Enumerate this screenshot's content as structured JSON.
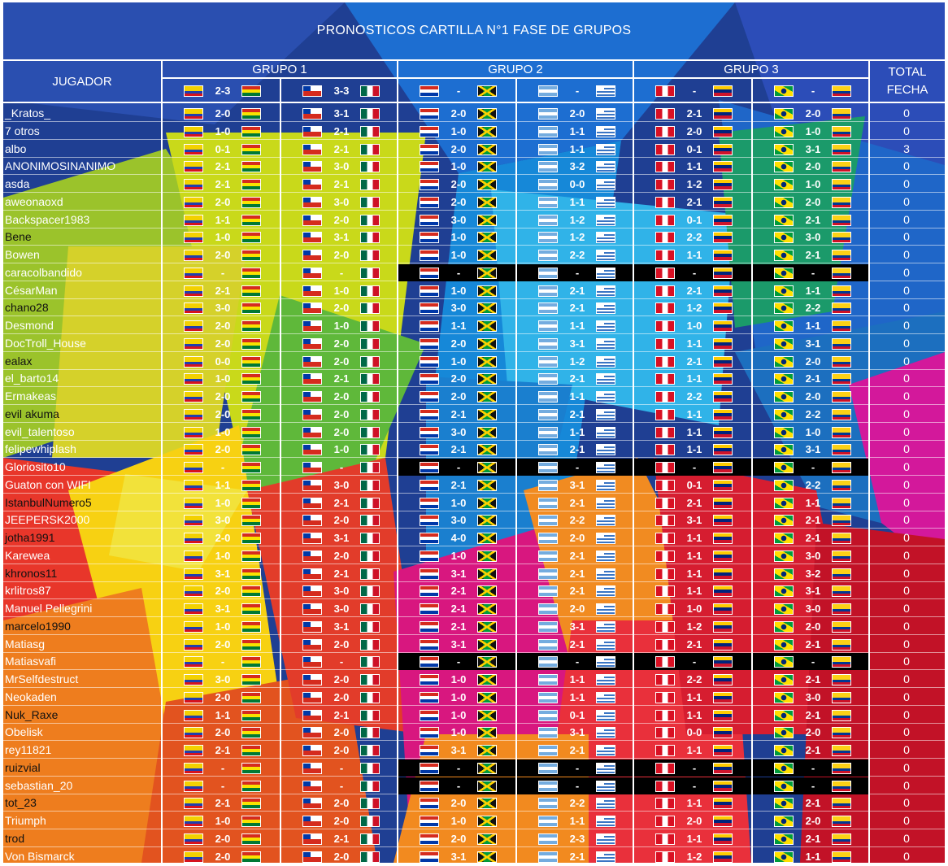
{
  "title": "PRONOSTICOS CARTILLA N°1 FASE DE GRUPOS",
  "header": {
    "player_label": "JUGADOR",
    "total_label": "TOTAL FECHA",
    "groups": [
      "GRUPO 1",
      "GRUPO 2",
      "GRUPO 3"
    ]
  },
  "matches": [
    {
      "home": "ecu",
      "away": "bol",
      "result": "2-3"
    },
    {
      "home": "chi",
      "away": "mex",
      "result": "3-3"
    },
    {
      "home": "par",
      "away": "jam",
      "result": "-"
    },
    {
      "home": "arg",
      "away": "uru",
      "result": "-"
    },
    {
      "home": "per",
      "away": "ven",
      "result": "-"
    },
    {
      "home": "bra",
      "away": "col",
      "result": "-"
    }
  ],
  "rows": [
    {
      "name": "_Kratos_",
      "picks": [
        "2-0",
        "3-1",
        "2-0",
        "2-0",
        "2-1",
        "2-0"
      ],
      "total": "0"
    },
    {
      "name": "7 otros",
      "picks": [
        "1-0",
        "2-1",
        "1-0",
        "1-1",
        "2-0",
        "1-0"
      ],
      "total": "0"
    },
    {
      "name": "albo",
      "picks": [
        "0-1",
        "2-1",
        "2-0",
        "1-1",
        "0-1",
        "3-1"
      ],
      "total": "3"
    },
    {
      "name": "ANONIMOSINANIMO",
      "picks": [
        "2-1",
        "3-0",
        "1-0",
        "3-2",
        "1-1",
        "2-0"
      ],
      "total": "0"
    },
    {
      "name": "asda",
      "picks": [
        "2-1",
        "2-1",
        "2-0",
        "0-0",
        "1-2",
        "1-0"
      ],
      "total": "0"
    },
    {
      "name": "aweonaoxd",
      "picks": [
        "2-0",
        "3-0",
        "2-0",
        "1-1",
        "2-1",
        "2-0"
      ],
      "total": "0"
    },
    {
      "name": "Backspacer1983",
      "picks": [
        "1-1",
        "2-0",
        "3-0",
        "1-2",
        "0-1",
        "2-1"
      ],
      "total": "0"
    },
    {
      "name": "Bene",
      "picks": [
        "1-0",
        "3-1",
        "1-0",
        "1-2",
        "2-2",
        "3-0"
      ],
      "total": "0"
    },
    {
      "name": "Bowen",
      "picks": [
        "2-0",
        "2-0",
        "1-0",
        "2-2",
        "1-1",
        "2-1"
      ],
      "total": "0"
    },
    {
      "name": "caracolbandido",
      "picks": [
        "-",
        "-",
        "-",
        "-",
        "-",
        "-"
      ],
      "total": "0"
    },
    {
      "name": "CésarMan",
      "picks": [
        "2-1",
        "1-0",
        "1-0",
        "2-1",
        "2-1",
        "1-1"
      ],
      "total": "0"
    },
    {
      "name": "chano28",
      "picks": [
        "3-0",
        "2-0",
        "3-0",
        "2-1",
        "1-2",
        "2-2"
      ],
      "total": "0"
    },
    {
      "name": "Desmond",
      "picks": [
        "2-0",
        "1-0",
        "1-1",
        "1-1",
        "1-0",
        "1-1"
      ],
      "total": "0"
    },
    {
      "name": "DocTroll_House",
      "picks": [
        "2-0",
        "2-0",
        "2-0",
        "3-1",
        "1-1",
        "3-1"
      ],
      "total": "0"
    },
    {
      "name": "ealax",
      "picks": [
        "0-0",
        "2-0",
        "1-0",
        "1-2",
        "2-1",
        "2-0"
      ],
      "total": "0"
    },
    {
      "name": "el_barto14",
      "picks": [
        "1-0",
        "2-1",
        "2-0",
        "2-1",
        "1-1",
        "2-1"
      ],
      "total": "0"
    },
    {
      "name": "Ermakeas",
      "picks": [
        "2-0",
        "2-0",
        "2-0",
        "1-1",
        "2-2",
        "2-0"
      ],
      "total": "0"
    },
    {
      "name": "evil akuma",
      "picks": [
        "2-0",
        "2-0",
        "2-1",
        "2-1",
        "1-1",
        "2-2"
      ],
      "total": "0"
    },
    {
      "name": "evil_talentoso",
      "picks": [
        "1-0",
        "2-0",
        "3-0",
        "1-1",
        "1-1",
        "1-0"
      ],
      "total": "0"
    },
    {
      "name": "felipewhiplash",
      "picks": [
        "2-0",
        "1-0",
        "2-1",
        "2-1",
        "1-1",
        "3-1"
      ],
      "total": "0"
    },
    {
      "name": "Gloriosito10",
      "picks": [
        "-",
        "-",
        "-",
        "-",
        "-",
        "-"
      ],
      "total": "0"
    },
    {
      "name": "Guaton con WIFI",
      "picks": [
        "1-1",
        "3-0",
        "2-1",
        "3-1",
        "0-1",
        "2-2"
      ],
      "total": "0"
    },
    {
      "name": "IstanbulNumero5",
      "picks": [
        "1-0",
        "2-1",
        "1-0",
        "2-1",
        "2-1",
        "1-1"
      ],
      "total": "0"
    },
    {
      "name": "JEEPERSK2000",
      "picks": [
        "3-0",
        "2-0",
        "3-0",
        "2-2",
        "3-1",
        "2-1"
      ],
      "total": "0"
    },
    {
      "name": "jotha1991",
      "picks": [
        "2-0",
        "3-1",
        "4-0",
        "2-0",
        "1-1",
        "2-1"
      ],
      "total": "0"
    },
    {
      "name": "Karewea",
      "picks": [
        "1-0",
        "2-0",
        "1-0",
        "2-1",
        "1-1",
        "3-0"
      ],
      "total": "0"
    },
    {
      "name": "khronos11",
      "picks": [
        "3-1",
        "2-1",
        "3-1",
        "2-1",
        "1-1",
        "3-2"
      ],
      "total": "0"
    },
    {
      "name": "krlitros87",
      "picks": [
        "2-0",
        "3-0",
        "2-1",
        "2-1",
        "1-1",
        "3-1"
      ],
      "total": "0"
    },
    {
      "name": "Manuel Pellegrini",
      "picks": [
        "3-1",
        "3-0",
        "2-1",
        "2-0",
        "1-0",
        "3-0"
      ],
      "total": "0"
    },
    {
      "name": "marcelo1990",
      "picks": [
        "1-0",
        "3-1",
        "2-1",
        "3-1",
        "1-2",
        "2-0"
      ],
      "total": "0"
    },
    {
      "name": "Matiasg",
      "picks": [
        "2-0",
        "2-0",
        "3-1",
        "2-1",
        "2-1",
        "2-1"
      ],
      "total": "0"
    },
    {
      "name": "Matiasvafi",
      "picks": [
        "-",
        "-",
        "-",
        "-",
        "-",
        "-"
      ],
      "total": "0"
    },
    {
      "name": "MrSelfdestruct",
      "picks": [
        "3-0",
        "2-0",
        "1-0",
        "1-1",
        "2-2",
        "2-1"
      ],
      "total": "0"
    },
    {
      "name": "Neokaden",
      "picks": [
        "2-0",
        "2-0",
        "1-0",
        "1-1",
        "1-1",
        "3-0"
      ],
      "total": "0"
    },
    {
      "name": "Nuk_Raxe",
      "picks": [
        "1-1",
        "2-1",
        "1-0",
        "0-1",
        "1-1",
        "2-1"
      ],
      "total": "0"
    },
    {
      "name": "Obelisk",
      "picks": [
        "2-0",
        "2-0",
        "1-0",
        "3-1",
        "0-0",
        "2-0"
      ],
      "total": "0"
    },
    {
      "name": "rey11821",
      "picks": [
        "2-1",
        "2-0",
        "3-1",
        "2-1",
        "1-1",
        "2-1"
      ],
      "total": "0"
    },
    {
      "name": "ruizvial",
      "picks": [
        "-",
        "-",
        "-",
        "-",
        "-",
        "-"
      ],
      "total": "0"
    },
    {
      "name": "sebastian_20",
      "picks": [
        "-",
        "-",
        "-",
        "-",
        "-",
        "-"
      ],
      "total": "0"
    },
    {
      "name": "tot_23",
      "picks": [
        "2-1",
        "2-0",
        "2-0",
        "2-2",
        "1-1",
        "2-1"
      ],
      "total": "0"
    },
    {
      "name": "Triumph",
      "picks": [
        "1-0",
        "2-0",
        "1-0",
        "1-1",
        "2-0",
        "2-0"
      ],
      "total": "0"
    },
    {
      "name": "trod",
      "picks": [
        "2-0",
        "2-1",
        "2-0",
        "2-3",
        "1-1",
        "2-1"
      ],
      "total": "0"
    },
    {
      "name": "Von Bismarck",
      "picks": [
        "2-0",
        "2-0",
        "3-1",
        "2-1",
        "1-2",
        "1-1"
      ],
      "total": "0"
    }
  ]
}
